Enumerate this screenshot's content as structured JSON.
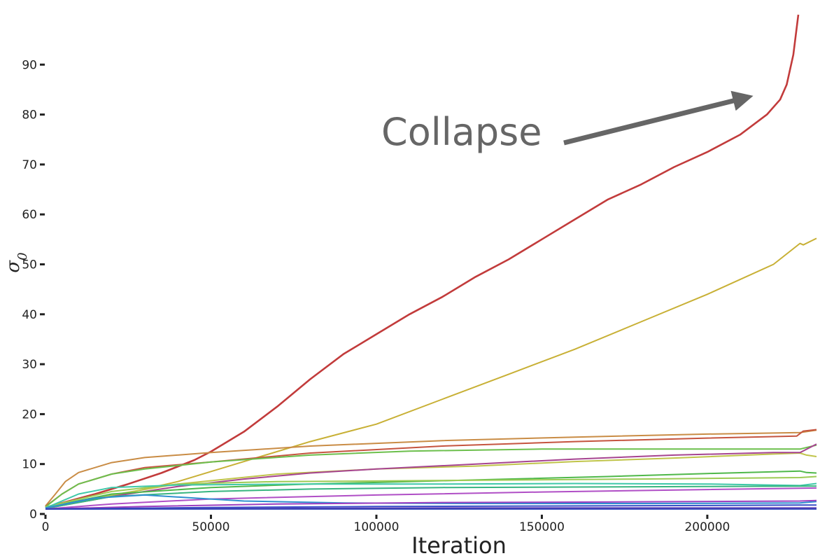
{
  "chart_data": {
    "type": "line",
    "xlabel": "Iteration",
    "ylabel": "σ",
    "ylabel_sub": "0",
    "xlim": [
      0,
      233000
    ],
    "ylim": [
      0,
      100
    ],
    "x_ticks": [
      0,
      50000,
      100000,
      150000,
      200000
    ],
    "y_ticks": [
      0,
      10,
      20,
      30,
      40,
      50,
      60,
      70,
      80,
      90
    ],
    "grid": false,
    "annotation": {
      "text": "Collapse",
      "arrow_to": [
        215000,
        85
      ]
    },
    "series": [
      {
        "color": "#c23b3b",
        "points": [
          [
            0,
            1.3
          ],
          [
            5000,
            2.2
          ],
          [
            15000,
            4
          ],
          [
            25000,
            6
          ],
          [
            35000,
            8.2
          ],
          [
            45000,
            10.8
          ],
          [
            50000,
            12.5
          ],
          [
            60000,
            16.5
          ],
          [
            70000,
            21.5
          ],
          [
            80000,
            27
          ],
          [
            90000,
            32
          ],
          [
            100000,
            36
          ],
          [
            110000,
            40
          ],
          [
            120000,
            43.5
          ],
          [
            130000,
            47.5
          ],
          [
            140000,
            51
          ],
          [
            150000,
            55
          ],
          [
            160000,
            59
          ],
          [
            170000,
            63
          ],
          [
            180000,
            66
          ],
          [
            190000,
            69.5
          ],
          [
            200000,
            72.5
          ],
          [
            210000,
            76
          ],
          [
            218000,
            80
          ],
          [
            222000,
            83
          ],
          [
            224000,
            86
          ],
          [
            226000,
            92
          ],
          [
            227500,
            100
          ]
        ]
      },
      {
        "color": "#c8b035",
        "points": [
          [
            0,
            1.2
          ],
          [
            20000,
            3.5
          ],
          [
            40000,
            6.5
          ],
          [
            60000,
            10.5
          ],
          [
            80000,
            14.5
          ],
          [
            100000,
            18
          ],
          [
            120000,
            23
          ],
          [
            140000,
            28
          ],
          [
            160000,
            33
          ],
          [
            180000,
            38.5
          ],
          [
            200000,
            44
          ],
          [
            220000,
            50
          ],
          [
            228000,
            54.2
          ],
          [
            229000,
            53.9
          ],
          [
            233000,
            55.2
          ]
        ]
      },
      {
        "color": "#c98c45",
        "points": [
          [
            0,
            1.6
          ],
          [
            3000,
            4
          ],
          [
            6000,
            6.5
          ],
          [
            10000,
            8.3
          ],
          [
            20000,
            10.3
          ],
          [
            30000,
            11.3
          ],
          [
            50000,
            12.3
          ],
          [
            80000,
            13.6
          ],
          [
            120000,
            14.7
          ],
          [
            160000,
            15.4
          ],
          [
            200000,
            16
          ],
          [
            228000,
            16.3
          ],
          [
            233000,
            16.8
          ]
        ]
      },
      {
        "color": "#c5543f",
        "points": [
          [
            0,
            1.5
          ],
          [
            5000,
            4
          ],
          [
            10000,
            6
          ],
          [
            20000,
            8
          ],
          [
            30000,
            9.3
          ],
          [
            50000,
            10.4
          ],
          [
            80000,
            12.2
          ],
          [
            120000,
            13.6
          ],
          [
            160000,
            14.5
          ],
          [
            200000,
            15.2
          ],
          [
            227000,
            15.6
          ],
          [
            229000,
            16.6
          ],
          [
            233000,
            16.9
          ]
        ]
      },
      {
        "color": "#6cbf4c",
        "points": [
          [
            0,
            1.4
          ],
          [
            5000,
            4
          ],
          [
            10000,
            6
          ],
          [
            20000,
            8
          ],
          [
            30000,
            9
          ],
          [
            50000,
            10.4
          ],
          [
            80000,
            11.8
          ],
          [
            110000,
            12.6
          ],
          [
            150000,
            13
          ],
          [
            200000,
            13
          ],
          [
            228000,
            13
          ],
          [
            233000,
            13.8
          ]
        ]
      },
      {
        "color": "#c0c44a",
        "points": [
          [
            0,
            1.2
          ],
          [
            20000,
            3.8
          ],
          [
            40000,
            6
          ],
          [
            70000,
            8
          ],
          [
            100000,
            9
          ],
          [
            130000,
            9.6
          ],
          [
            160000,
            10.5
          ],
          [
            190000,
            11.2
          ],
          [
            220000,
            12
          ],
          [
            228000,
            12.2
          ],
          [
            230000,
            11.8
          ],
          [
            233000,
            11.5
          ]
        ]
      },
      {
        "color": "#a64490",
        "points": [
          [
            0,
            1.1
          ],
          [
            20000,
            3.5
          ],
          [
            40000,
            5.5
          ],
          [
            60000,
            7
          ],
          [
            80000,
            8.2
          ],
          [
            100000,
            9
          ],
          [
            130000,
            10
          ],
          [
            160000,
            11
          ],
          [
            190000,
            11.8
          ],
          [
            220000,
            12.3
          ],
          [
            228000,
            12.3
          ],
          [
            233000,
            14
          ]
        ]
      },
      {
        "color": "#4fb84a",
        "points": [
          [
            0,
            1.3
          ],
          [
            20000,
            4
          ],
          [
            50000,
            5.3
          ],
          [
            80000,
            6
          ],
          [
            110000,
            6.5
          ],
          [
            140000,
            7
          ],
          [
            170000,
            7.5
          ],
          [
            200000,
            8.1
          ],
          [
            228000,
            8.6
          ],
          [
            230000,
            8.3
          ],
          [
            233000,
            8.2
          ]
        ]
      },
      {
        "color": "#9ccb54",
        "points": [
          [
            0,
            1.4
          ],
          [
            20000,
            4.5
          ],
          [
            40000,
            6
          ],
          [
            70000,
            6.5
          ],
          [
            100000,
            6.6
          ],
          [
            140000,
            6.8
          ],
          [
            180000,
            7
          ],
          [
            228000,
            7.3
          ],
          [
            233000,
            7.5
          ]
        ]
      },
      {
        "color": "#3ec8a8",
        "points": [
          [
            0,
            1.2
          ],
          [
            10000,
            4
          ],
          [
            20000,
            5.3
          ],
          [
            40000,
            5.8
          ],
          [
            80000,
            6
          ],
          [
            120000,
            6
          ],
          [
            160000,
            6.1
          ],
          [
            200000,
            6
          ],
          [
            228000,
            5.7
          ],
          [
            233000,
            6.1
          ]
        ]
      },
      {
        "color": "#38b580",
        "points": [
          [
            0,
            1.1
          ],
          [
            20000,
            3.5
          ],
          [
            50000,
            4.5
          ],
          [
            80000,
            5
          ],
          [
            120000,
            5.3
          ],
          [
            160000,
            5.4
          ],
          [
            200000,
            5.5
          ],
          [
            233000,
            5.6
          ]
        ]
      },
      {
        "color": "#b04fc6",
        "points": [
          [
            0,
            1
          ],
          [
            20000,
            2
          ],
          [
            50000,
            3
          ],
          [
            100000,
            3.8
          ],
          [
            150000,
            4.4
          ],
          [
            200000,
            4.9
          ],
          [
            233000,
            5.2
          ]
        ]
      },
      {
        "color": "#2f8fcf",
        "points": [
          [
            0,
            1.2
          ],
          [
            15000,
            3.2
          ],
          [
            30000,
            3.8
          ],
          [
            45000,
            3.2
          ],
          [
            60000,
            2.6
          ],
          [
            90000,
            2.2
          ],
          [
            130000,
            2.1
          ],
          [
            180000,
            2.1
          ],
          [
            228000,
            2.2
          ],
          [
            233000,
            2.5
          ]
        ]
      },
      {
        "color": "#9d3fc0",
        "points": [
          [
            0,
            1
          ],
          [
            30000,
            1.5
          ],
          [
            70000,
            2
          ],
          [
            120000,
            2.3
          ],
          [
            170000,
            2.4
          ],
          [
            228000,
            2.6
          ],
          [
            233000,
            2.7
          ]
        ]
      },
      {
        "color": "#3a4fc8",
        "points": [
          [
            0,
            1
          ],
          [
            50000,
            1.3
          ],
          [
            100000,
            1.5
          ],
          [
            150000,
            1.6
          ],
          [
            200000,
            1.7
          ],
          [
            233000,
            1.8
          ]
        ]
      },
      {
        "color": "#5e3bb5",
        "points": [
          [
            0,
            1
          ],
          [
            60000,
            1.1
          ],
          [
            120000,
            1.2
          ],
          [
            180000,
            1.2
          ],
          [
            233000,
            1.2
          ]
        ]
      },
      {
        "color": "#3043b8",
        "points": [
          [
            0,
            1
          ],
          [
            233000,
            1
          ]
        ]
      }
    ]
  }
}
